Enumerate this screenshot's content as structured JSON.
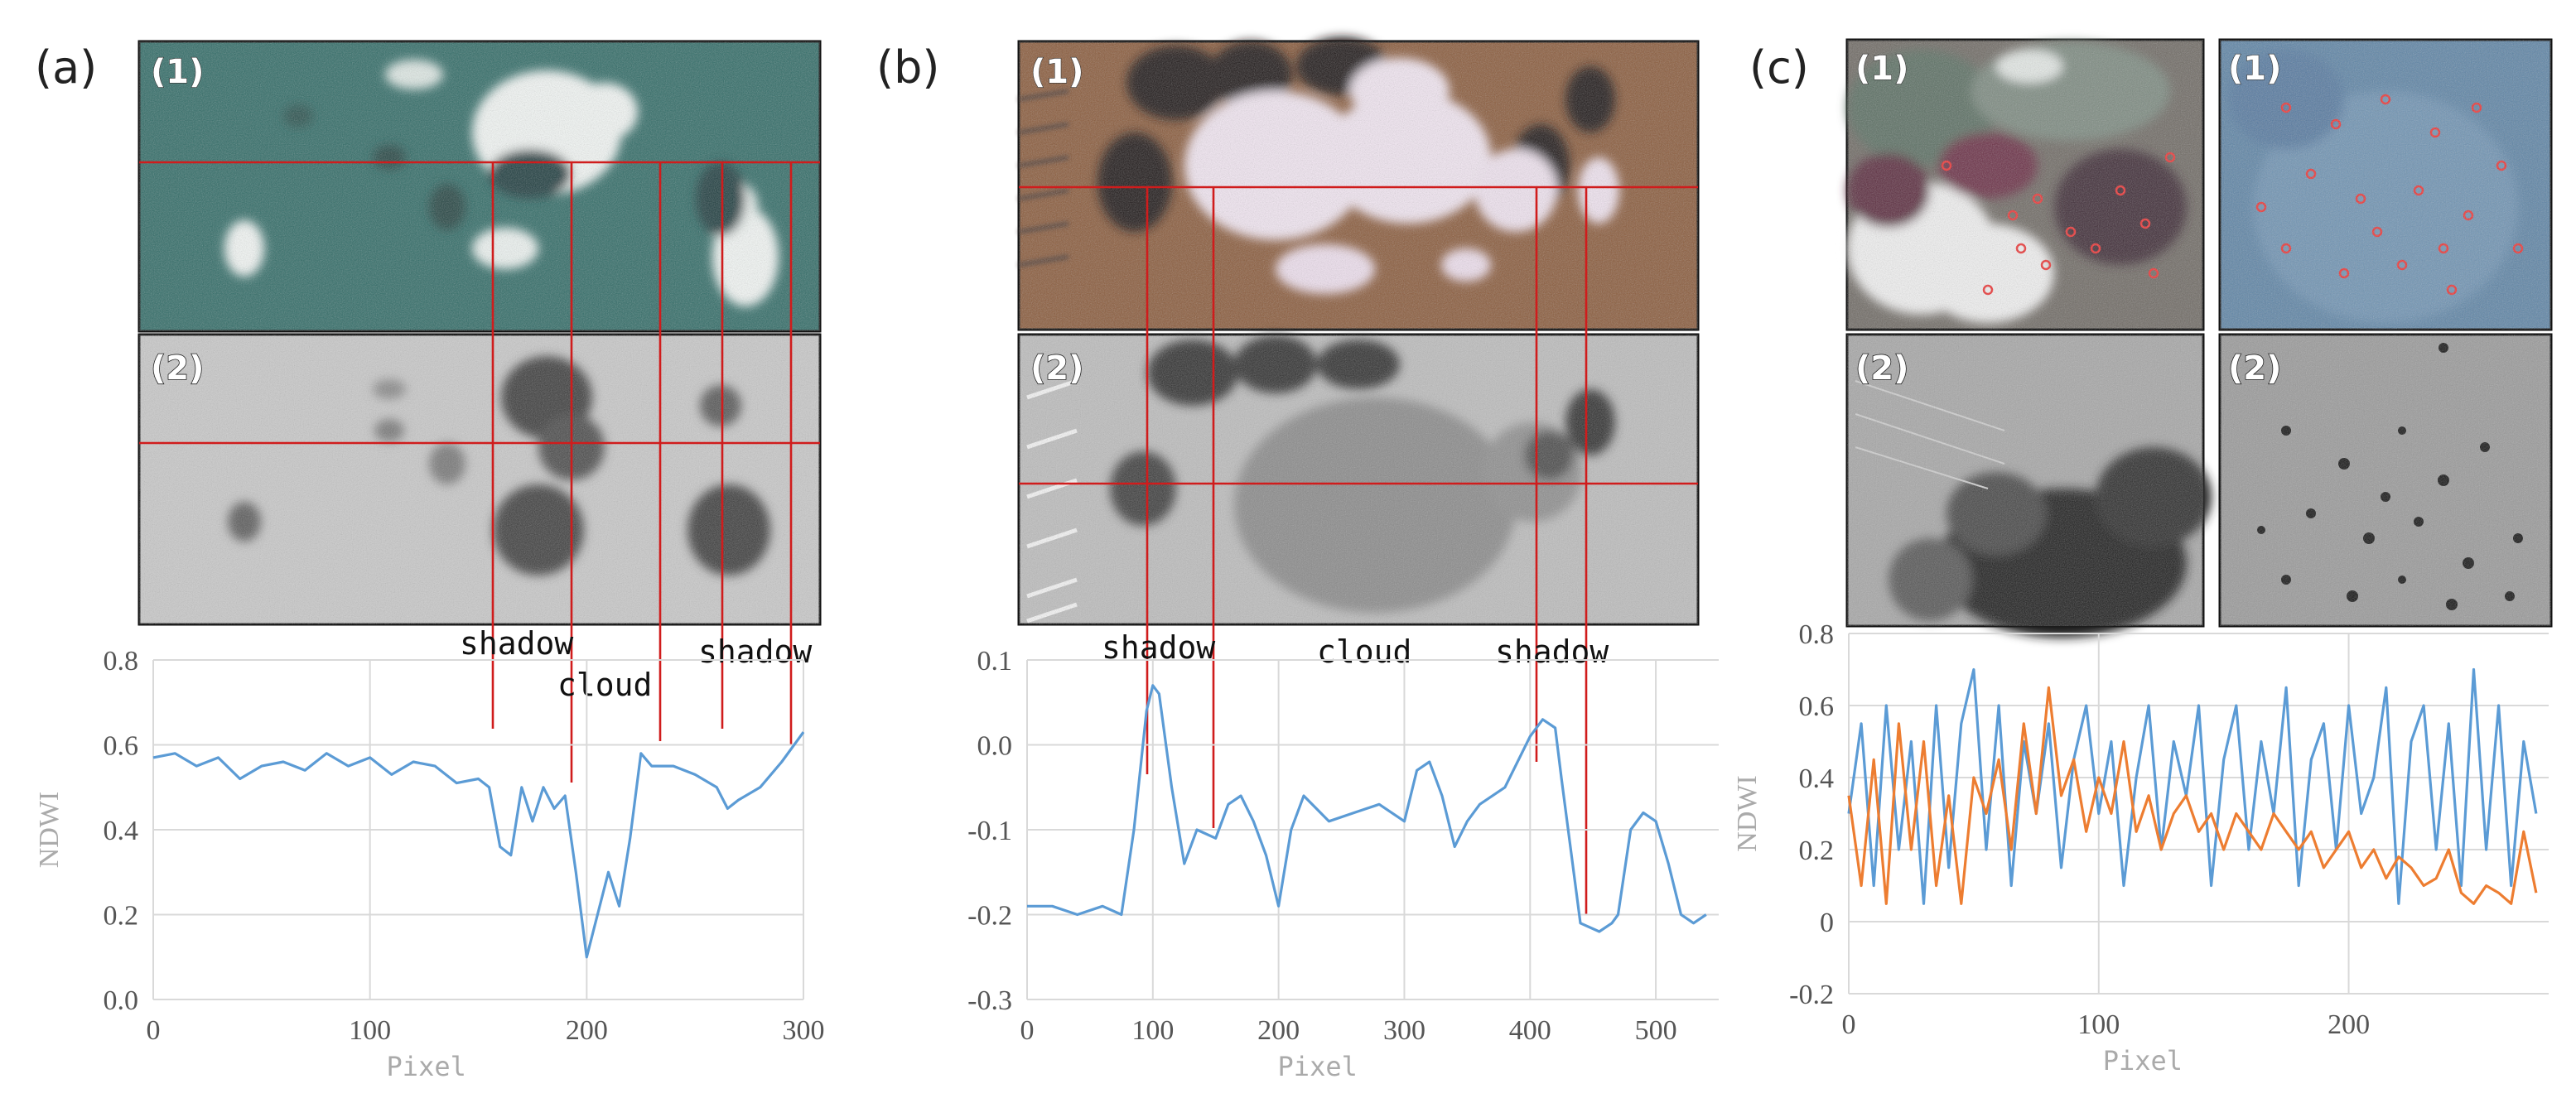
{
  "panels": [
    {
      "id": "a",
      "letter": "(a)",
      "img1_label": "(1)",
      "img2_label": "(2)",
      "annotations": [
        "shadow",
        "cloud",
        "shadow"
      ]
    },
    {
      "id": "b",
      "letter": "(b)",
      "img1_label": "(1)",
      "img2_label": "(2)",
      "annotations": [
        "shadow",
        "cloud",
        "shadow"
      ]
    },
    {
      "id": "c",
      "letter": "(c)",
      "img1_label": "(1)",
      "img2_label": "(2)",
      "img3_label": "(1)",
      "img4_label": "(2)"
    }
  ],
  "colors": {
    "series_blue": "#5b9bd5",
    "series_orange": "#ed7d31",
    "annotation_red": "#d01c1c"
  },
  "chart_data": [
    {
      "type": "line",
      "panel": "a",
      "xlabel": "Pixel",
      "ylabel": "NDWI",
      "xlim": [
        0,
        300
      ],
      "ylim": [
        0.0,
        0.8
      ],
      "xticks": [
        "0",
        "100",
        "200",
        "300"
      ],
      "yticks": [
        "0.0",
        "0.2",
        "0.4",
        "0.6",
        "0.8"
      ],
      "annotation_x": {
        "shadow_left": 158,
        "cloud": 195,
        "shadow_right": 265,
        "extra_lines": [
          235,
          298
        ]
      },
      "series": [
        {
          "color": "#5b9bd5",
          "x": [
            0,
            10,
            20,
            30,
            40,
            50,
            60,
            70,
            80,
            90,
            100,
            110,
            120,
            130,
            140,
            150,
            155,
            160,
            165,
            170,
            175,
            180,
            185,
            190,
            195,
            200,
            205,
            210,
            215,
            220,
            225,
            230,
            240,
            250,
            260,
            265,
            270,
            280,
            290,
            300
          ],
          "y": [
            0.57,
            0.58,
            0.55,
            0.57,
            0.52,
            0.55,
            0.56,
            0.54,
            0.58,
            0.55,
            0.57,
            0.53,
            0.56,
            0.55,
            0.51,
            0.52,
            0.5,
            0.36,
            0.34,
            0.5,
            0.42,
            0.5,
            0.45,
            0.48,
            0.3,
            0.1,
            0.2,
            0.3,
            0.22,
            0.38,
            0.58,
            0.55,
            0.55,
            0.53,
            0.5,
            0.45,
            0.47,
            0.5,
            0.56,
            0.63
          ]
        }
      ]
    },
    {
      "type": "line",
      "panel": "b",
      "xlabel": "Pixel",
      "ylabel": "",
      "xlim": [
        0,
        550
      ],
      "ylim": [
        -0.3,
        0.1
      ],
      "xticks": [
        "0",
        "100",
        "200",
        "300",
        "400",
        "500"
      ],
      "yticks": [
        "-0.3",
        "-0.2",
        "-0.1",
        "0.0",
        "0.1"
      ],
      "annotation_x": {
        "shadow_left": 100,
        "cloud": 155,
        "shadow_right": 420,
        "extra_lines": [
          465
        ]
      },
      "series": [
        {
          "color": "#5b9bd5",
          "x": [
            0,
            20,
            40,
            60,
            75,
            85,
            95,
            100,
            105,
            115,
            125,
            135,
            150,
            160,
            170,
            180,
            190,
            200,
            210,
            220,
            240,
            260,
            280,
            300,
            310,
            320,
            330,
            340,
            350,
            360,
            380,
            400,
            410,
            420,
            425,
            440,
            455,
            465,
            470,
            480,
            490,
            500,
            510,
            520,
            530,
            540
          ],
          "y": [
            -0.19,
            -0.19,
            -0.2,
            -0.19,
            -0.2,
            -0.1,
            0.04,
            0.07,
            0.06,
            -0.05,
            -0.14,
            -0.1,
            -0.11,
            -0.07,
            -0.06,
            -0.09,
            -0.13,
            -0.19,
            -0.1,
            -0.06,
            -0.09,
            -0.08,
            -0.07,
            -0.09,
            -0.03,
            -0.02,
            -0.06,
            -0.12,
            -0.09,
            -0.07,
            -0.05,
            0.01,
            0.03,
            0.02,
            -0.04,
            -0.21,
            -0.22,
            -0.21,
            -0.2,
            -0.1,
            -0.08,
            -0.09,
            -0.14,
            -0.2,
            -0.21,
            -0.2
          ]
        }
      ]
    },
    {
      "type": "line",
      "panel": "c",
      "xlabel": "Pixel",
      "ylabel": "NDWI",
      "xlim": [
        0,
        280
      ],
      "ylim": [
        -0.2,
        0.8
      ],
      "xticks": [
        "0",
        "100",
        "200"
      ],
      "yticks": [
        "-0.2",
        "0",
        "0.2",
        "0.4",
        "0.6",
        "0.8"
      ],
      "series": [
        {
          "color": "#5b9bd5",
          "x": [
            0,
            5,
            10,
            15,
            20,
            25,
            30,
            35,
            40,
            45,
            50,
            55,
            60,
            65,
            70,
            75,
            80,
            85,
            90,
            95,
            100,
            105,
            110,
            115,
            120,
            125,
            130,
            135,
            140,
            145,
            150,
            155,
            160,
            165,
            170,
            175,
            180,
            185,
            190,
            195,
            200,
            205,
            210,
            215,
            220,
            225,
            230,
            235,
            240,
            245,
            250,
            255,
            260,
            265,
            270,
            275
          ],
          "y": [
            0.3,
            0.55,
            0.1,
            0.6,
            0.2,
            0.5,
            0.05,
            0.6,
            0.15,
            0.55,
            0.7,
            0.2,
            0.6,
            0.1,
            0.5,
            0.3,
            0.55,
            0.15,
            0.45,
            0.6,
            0.3,
            0.5,
            0.1,
            0.4,
            0.6,
            0.2,
            0.5,
            0.35,
            0.6,
            0.1,
            0.45,
            0.6,
            0.2,
            0.5,
            0.3,
            0.65,
            0.1,
            0.45,
            0.55,
            0.2,
            0.6,
            0.3,
            0.4,
            0.65,
            0.05,
            0.5,
            0.6,
            0.2,
            0.55,
            0.1,
            0.7,
            0.2,
            0.6,
            0.1,
            0.5,
            0.3
          ]
        },
        {
          "color": "#ed7d31",
          "x": [
            0,
            5,
            10,
            15,
            20,
            25,
            30,
            35,
            40,
            45,
            50,
            55,
            60,
            65,
            70,
            75,
            80,
            85,
            90,
            95,
            100,
            105,
            110,
            115,
            120,
            125,
            130,
            135,
            140,
            145,
            150,
            155,
            160,
            165,
            170,
            175,
            180,
            185,
            190,
            195,
            200,
            205,
            210,
            215,
            220,
            225,
            230,
            235,
            240,
            245,
            250,
            255,
            260,
            265,
            270,
            275
          ],
          "y": [
            0.35,
            0.1,
            0.45,
            0.05,
            0.55,
            0.2,
            0.5,
            0.1,
            0.35,
            0.05,
            0.4,
            0.3,
            0.45,
            0.2,
            0.55,
            0.3,
            0.65,
            0.35,
            0.45,
            0.25,
            0.4,
            0.3,
            0.5,
            0.25,
            0.35,
            0.2,
            0.3,
            0.35,
            0.25,
            0.3,
            0.2,
            0.3,
            0.25,
            0.2,
            0.3,
            0.25,
            0.2,
            0.25,
            0.15,
            0.2,
            0.25,
            0.15,
            0.2,
            0.12,
            0.18,
            0.15,
            0.1,
            0.12,
            0.2,
            0.08,
            0.05,
            0.1,
            0.08,
            0.05,
            0.25,
            0.08
          ]
        }
      ]
    }
  ]
}
